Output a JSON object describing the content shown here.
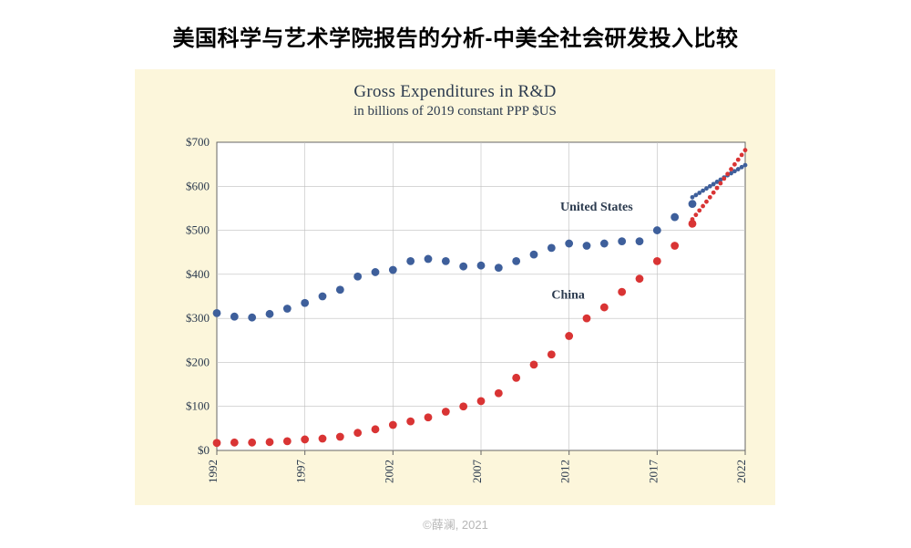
{
  "page": {
    "title": "美国科学与艺术学院报告的分析-中美全社会研发投入比较",
    "footer": "©薛澜, 2021"
  },
  "chart": {
    "type": "scatter-line",
    "title": "Gross Expenditures in R&D",
    "subtitle": "in billions of 2019 constant PPP $US",
    "panel_bg": "#fcf6db",
    "plot_bg": "#ffffff",
    "axis_color": "#666666",
    "grid_color": "#bfbfbf",
    "grid_width": 0.6,
    "title_fontsize": 19,
    "subtitle_fontsize": 15,
    "tick_fontsize": 13,
    "label_fontsize": 14,
    "xlim": [
      1992,
      2022
    ],
    "ylim": [
      0,
      700
    ],
    "yticks": [
      0,
      100,
      200,
      300,
      400,
      500,
      600,
      700
    ],
    "ytick_labels": [
      "$0",
      "$100",
      "$200",
      "$300",
      "$400",
      "$500",
      "$600",
      "$700"
    ],
    "xticks": [
      1992,
      1997,
      2002,
      2007,
      2012,
      2017,
      2022
    ],
    "xtick_labels": [
      "1992",
      "1997",
      "2002",
      "2007",
      "2012",
      "2017",
      "2022"
    ],
    "marker_radius": 4.4,
    "proj_marker_radius": 2.4,
    "series": [
      {
        "name": "United States",
        "color": "#3e5f9b",
        "label_x": 2011.5,
        "label_y": 545,
        "years": [
          1992,
          1993,
          1994,
          1995,
          1996,
          1997,
          1998,
          1999,
          2000,
          2001,
          2002,
          2003,
          2004,
          2005,
          2006,
          2007,
          2008,
          2009,
          2010,
          2011,
          2012,
          2013,
          2014,
          2015,
          2016,
          2017,
          2018,
          2019
        ],
        "values": [
          312,
          304,
          302,
          310,
          322,
          335,
          350,
          365,
          395,
          405,
          410,
          430,
          435,
          430,
          418,
          420,
          415,
          430,
          445,
          460,
          470,
          465,
          470,
          475,
          475,
          500,
          530,
          560
        ],
        "proj_years": [
          2019,
          2020,
          2021,
          2022
        ],
        "proj_values": [
          575,
          600,
          625,
          648
        ]
      },
      {
        "name": "China",
        "color": "#d93434",
        "label_x": 2011,
        "label_y": 345,
        "years": [
          1992,
          1993,
          1994,
          1995,
          1996,
          1997,
          1998,
          1999,
          2000,
          2001,
          2002,
          2003,
          2004,
          2005,
          2006,
          2007,
          2008,
          2009,
          2010,
          2011,
          2012,
          2013,
          2014,
          2015,
          2016,
          2017,
          2018,
          2019
        ],
        "values": [
          17,
          18,
          18,
          19,
          21,
          25,
          27,
          31,
          40,
          48,
          58,
          66,
          75,
          88,
          100,
          112,
          130,
          165,
          195,
          218,
          260,
          300,
          325,
          360,
          390,
          430,
          465,
          515
        ],
        "proj_years": [
          2019,
          2020,
          2021,
          2022
        ],
        "proj_values": [
          525,
          575,
          628,
          682
        ]
      }
    ]
  }
}
